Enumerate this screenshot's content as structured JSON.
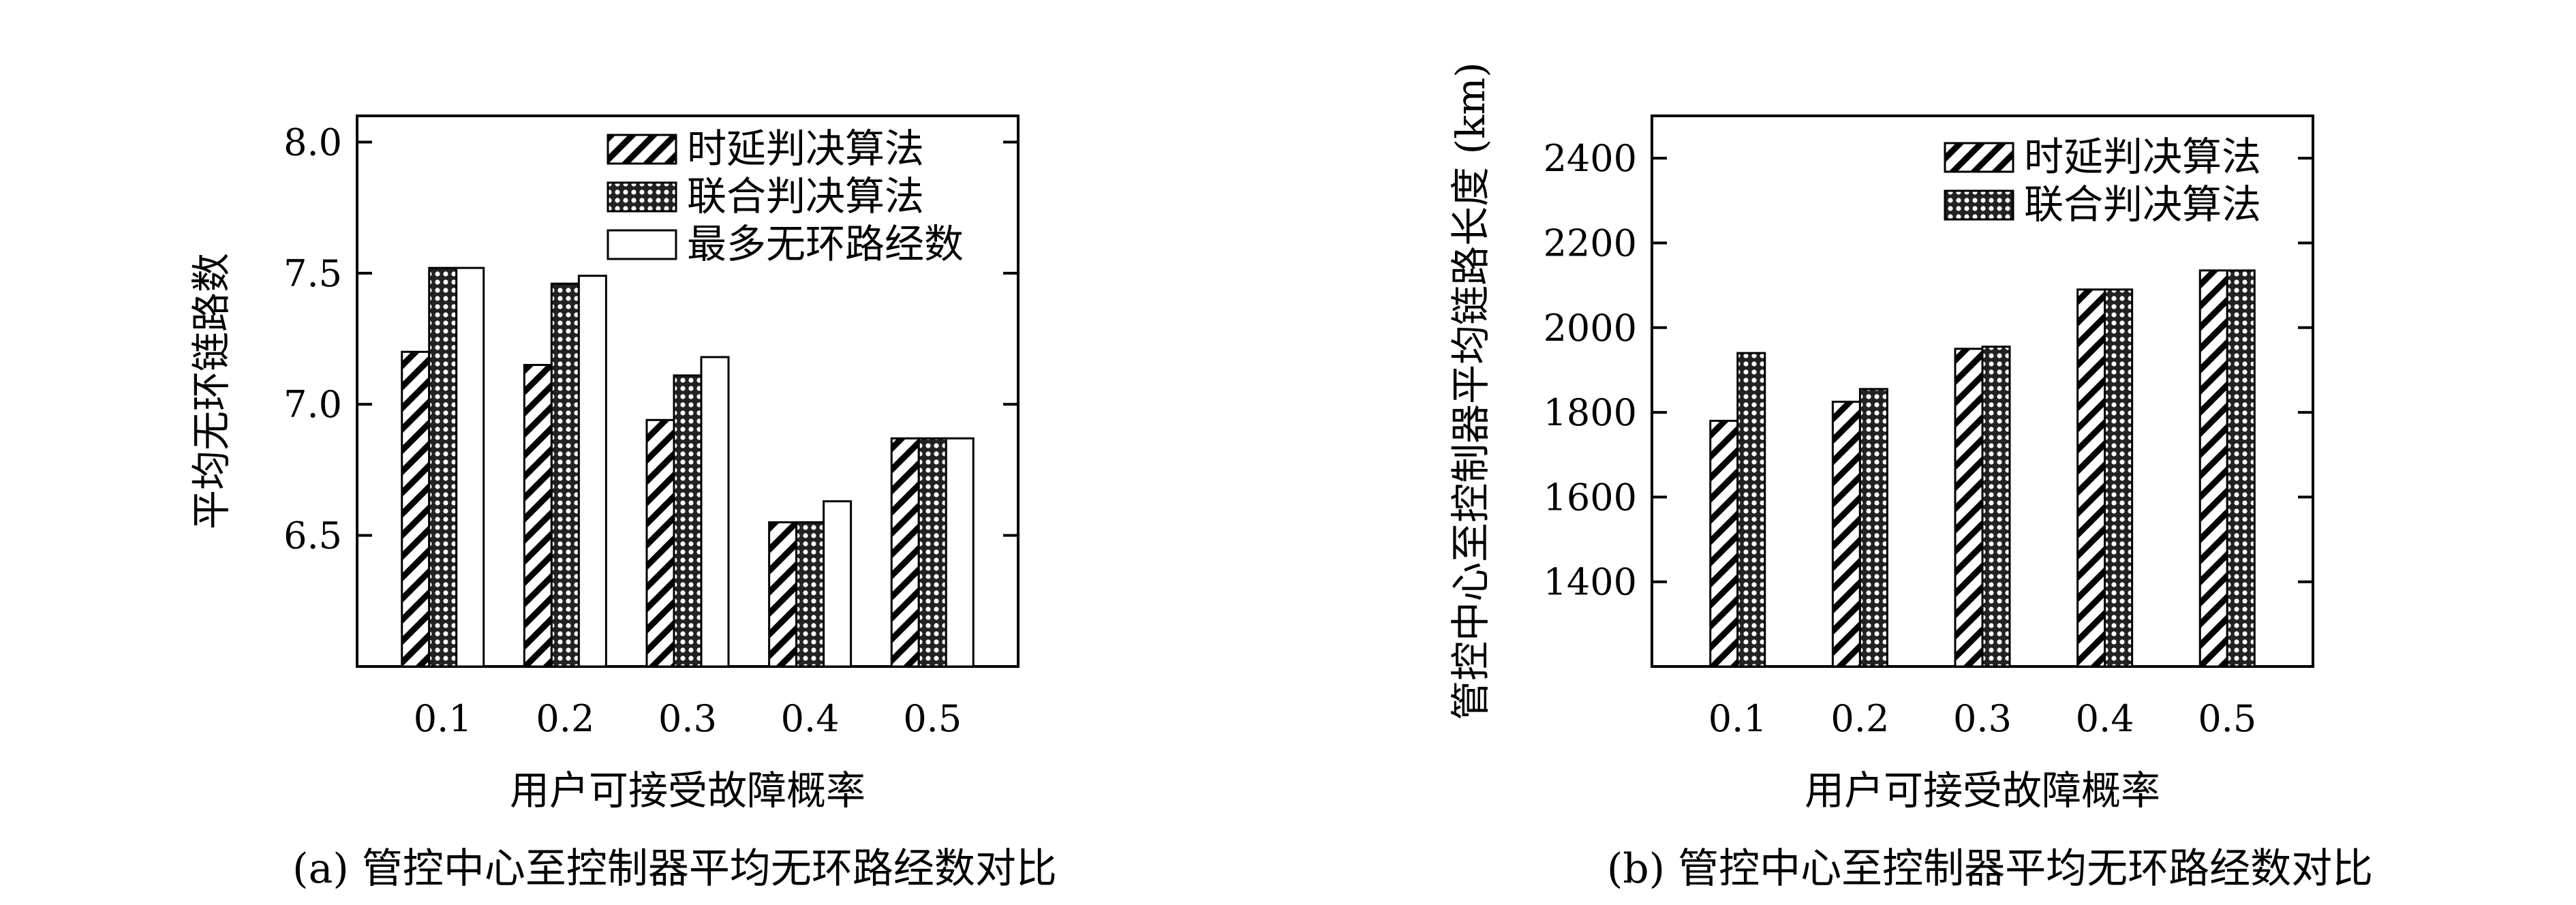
{
  "chart_data": [
    {
      "type": "bar",
      "xlabel": "用户可接受故障概率",
      "ylabel": "平均无环链路数",
      "caption": "(a) 管控中心至控制器平均无环路经数对比",
      "categories": [
        "0.1",
        "0.2",
        "0.3",
        "0.4",
        "0.5"
      ],
      "ylim": [
        6.0,
        8.1
      ],
      "yticks": [
        "6.5",
        "7.0",
        "7.5",
        "8.0"
      ],
      "legend_position": "top-right",
      "series": [
        {
          "name": "时延判决算法",
          "pattern": "hatch",
          "values": [
            7.2,
            7.15,
            6.94,
            6.55,
            6.87
          ]
        },
        {
          "name": "联合判决算法",
          "pattern": "dots",
          "values": [
            7.52,
            7.46,
            7.11,
            6.55,
            6.87
          ]
        },
        {
          "name": "最多无环路经数",
          "pattern": "white",
          "values": [
            7.52,
            7.49,
            7.18,
            6.63,
            6.87
          ]
        }
      ]
    },
    {
      "type": "bar",
      "xlabel": "用户可接受故障概率",
      "ylabel": "管控中心至控制器平均链路长度 (km)",
      "caption": "(b) 管控中心至控制器平均无环路经数对比",
      "categories": [
        "0.1",
        "0.2",
        "0.3",
        "0.4",
        "0.5"
      ],
      "ylim": [
        1200,
        2500
      ],
      "yticks": [
        "1400",
        "1600",
        "1800",
        "2000",
        "2200",
        "2400"
      ],
      "legend_position": "top-right",
      "series": [
        {
          "name": "时延判决算法",
          "pattern": "hatch",
          "values": [
            1780,
            1825,
            1950,
            2090,
            2135
          ]
        },
        {
          "name": "联合判决算法",
          "pattern": "dots",
          "values": [
            1940,
            1855,
            1955,
            2090,
            2135
          ]
        }
      ]
    }
  ]
}
